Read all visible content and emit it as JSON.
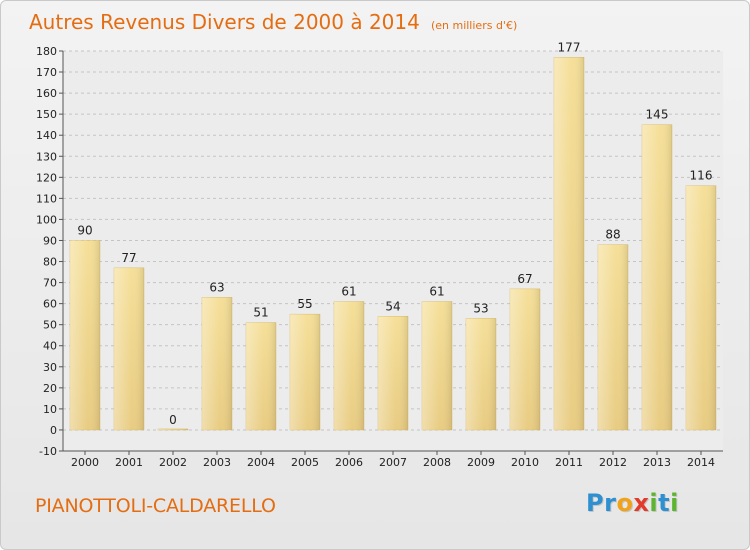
{
  "chart_data": {
    "type": "bar",
    "title": "Autres Revenus Divers de 2000 à 2014",
    "subtitle": "(en milliers d'€)",
    "categories": [
      "2000",
      "2001",
      "2002",
      "2003",
      "2004",
      "2005",
      "2006",
      "2007",
      "2008",
      "2009",
      "2010",
      "2011",
      "2012",
      "2013",
      "2014"
    ],
    "values": [
      90,
      77,
      0,
      63,
      51,
      55,
      61,
      54,
      61,
      53,
      67,
      177,
      88,
      145,
      116
    ],
    "ylim": [
      -10,
      180
    ],
    "ytick_step": 10,
    "grid": true,
    "bar_color": "#e8cc82",
    "bar_highlight_color": "#f5df98"
  },
  "commune": "PIANOTTOLI-CALDARELLO",
  "brand": {
    "letters": [
      {
        "ch": "P",
        "color": "#2e8fd1"
      },
      {
        "ch": "r",
        "color": "#2e8fd1"
      },
      {
        "ch": "o",
        "color": "#f0a21a"
      },
      {
        "ch": "x",
        "color": "#e23b2a"
      },
      {
        "ch": "i",
        "color": "#5cb531"
      },
      {
        "ch": "t",
        "color": "#2e8fd1"
      },
      {
        "ch": "i",
        "color": "#5cb531"
      }
    ]
  },
  "colors": {
    "accent": "#e46d12"
  }
}
